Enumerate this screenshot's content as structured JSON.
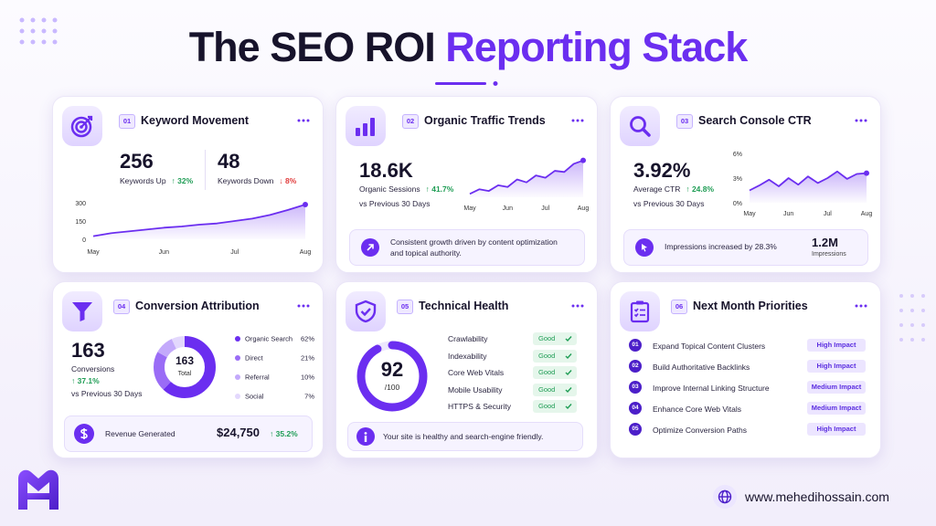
{
  "header": {
    "title_main": "The SEO ROI",
    "title_accent": "Reporting Stack"
  },
  "cards": [
    {
      "number": "01",
      "title": "Keyword Movement",
      "stats": [
        {
          "value": "256",
          "label": "Keywords Up",
          "change": "↑ 32%"
        },
        {
          "value": "48",
          "label": "Keywords Down",
          "change": "↓ 8%"
        }
      ],
      "chart_data": {
        "type": "line",
        "categories": [
          "May",
          null,
          null,
          null,
          "Jun",
          null,
          null,
          null,
          "Jul",
          null,
          null,
          null,
          "Aug"
        ],
        "values": [
          25,
          50,
          65,
          80,
          95,
          105,
          120,
          130,
          150,
          170,
          200,
          240,
          285
        ],
        "ylim": [
          0,
          300
        ],
        "yticks": [
          0,
          150,
          300
        ],
        "color": "#6b2ef0"
      }
    },
    {
      "number": "02",
      "title": "Organic Traffic Trends",
      "metric": "18.6K",
      "metric_label": "Organic Sessions",
      "change": "↑ 41.7%",
      "comparison": "vs Previous 30 Days",
      "chart_data": {
        "type": "line",
        "categories": [
          "May",
          null,
          null,
          null,
          "Jun",
          null,
          null,
          null,
          "Jul",
          null,
          null,
          null,
          "Aug"
        ],
        "values": [
          20,
          28,
          25,
          35,
          32,
          45,
          40,
          52,
          48,
          60,
          58,
          72,
          78
        ],
        "color": "#6b2ef0"
      },
      "note": "Consistent growth driven by content optimization and topical authority."
    },
    {
      "number": "03",
      "title": "Search Console CTR",
      "metric": "3.92%",
      "metric_label": "Average CTR",
      "change": "↑ 24.8%",
      "comparison": "vs Previous 30 Days",
      "chart_data": {
        "type": "line",
        "categories": [
          "May",
          null,
          null,
          null,
          "Jun",
          null,
          null,
          null,
          "Jul",
          null,
          null,
          null,
          "Aug"
        ],
        "values": [
          1.5,
          2.1,
          2.8,
          2.0,
          3.0,
          2.2,
          3.2,
          2.4,
          3.0,
          3.8,
          2.9,
          3.5,
          3.6
        ],
        "ylim": [
          0,
          6
        ],
        "yticks": [
          {
            "value": 0,
            "label": "0%"
          },
          {
            "value": 3,
            "label": "3%"
          },
          {
            "value": 6,
            "label": "6%"
          }
        ],
        "color": "#6b2ef0"
      },
      "note": "Impressions increased by 28.3%",
      "note_value": "1.2M",
      "note_value_label": "Impressions"
    },
    {
      "number": "04",
      "title": "Conversion Attribution",
      "metric": "163",
      "metric_label": "Conversions",
      "change": "↑ 37.1%",
      "comparison": "vs Previous 30 Days",
      "center_label": "Total",
      "chart_data": {
        "type": "pie",
        "categories": [
          "Organic Search",
          "Direct",
          "Referral",
          "Social"
        ],
        "values": [
          62,
          21,
          10,
          7
        ],
        "value_labels": [
          "62%",
          "21%",
          "10%",
          "7%"
        ],
        "colors": [
          "#6b2ef0",
          "#9a6cf6",
          "#c3a9fb",
          "#e3d8fd"
        ]
      },
      "revenue": {
        "label": "Revenue Generated",
        "value": "$24,750",
        "change": "↑ 35.2%"
      }
    },
    {
      "number": "05",
      "title": "Technical Health",
      "score": 92,
      "scale": {
        "value": 100,
        "label": "/100"
      },
      "checks": [
        {
          "name": "Crawlability",
          "status": "Good"
        },
        {
          "name": "Indexability",
          "status": "Good"
        },
        {
          "name": "Core Web Vitals",
          "status": "Good"
        },
        {
          "name": "Mobile Usability",
          "status": "Good"
        },
        {
          "name": "HTTPS & Security",
          "status": "Good"
        }
      ],
      "note": "Your site is healthy and search-engine friendly."
    },
    {
      "number": "06",
      "title": "Next Month Priorities",
      "items": [
        {
          "number": "01",
          "text": "Expand Topical Content Clusters",
          "impact": "High Impact"
        },
        {
          "number": "02",
          "text": "Build Authoritative Backlinks",
          "impact": "High Impact"
        },
        {
          "number": "03",
          "text": "Improve Internal Linking Structure",
          "impact": "Medium Impact"
        },
        {
          "number": "04",
          "text": "Enhance Core Web Vitals",
          "impact": "Medium Impact"
        },
        {
          "number": "05",
          "text": "Optimize Conversion Paths",
          "impact": "High Impact"
        }
      ]
    }
  ],
  "footer": {
    "website": "www.mehedihossain.com"
  }
}
